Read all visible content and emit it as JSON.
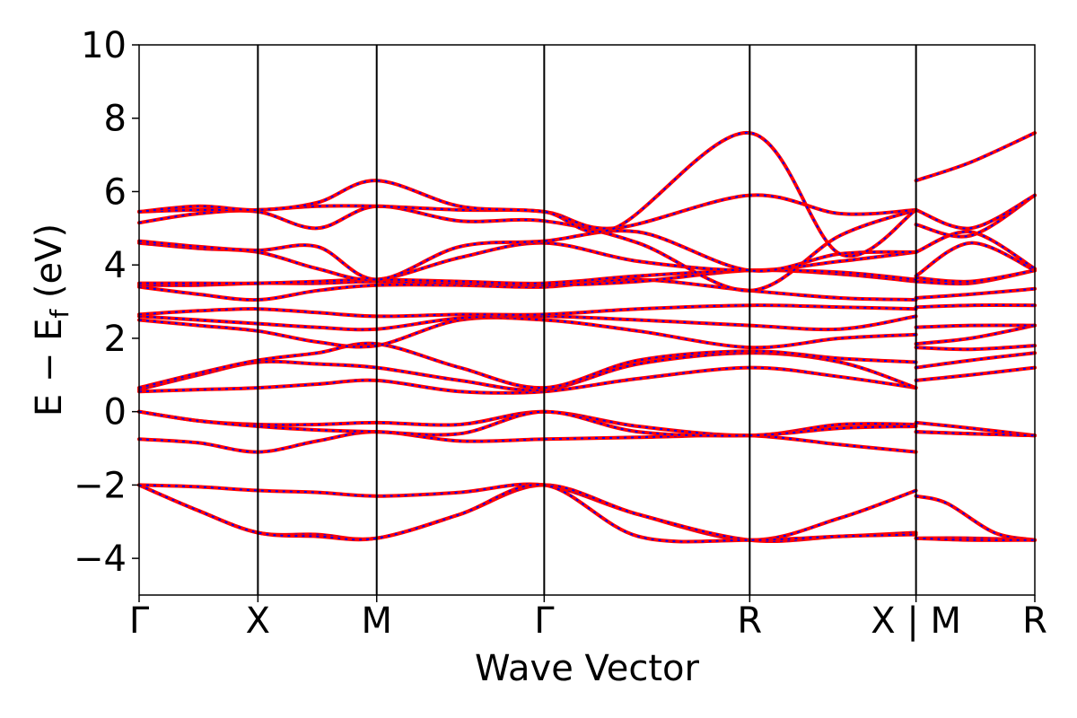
{
  "chart_data": {
    "type": "line",
    "xlabel": "Wave Vector",
    "ylabel": "E − E_f (eV)",
    "ylabel_parts": {
      "main": "E − E",
      "sub": "f",
      "unit": " (eV)"
    },
    "ylim": [
      -5,
      10
    ],
    "yticks": [
      -4,
      -2,
      0,
      2,
      4,
      6,
      8,
      10
    ],
    "ytick_labels": [
      "−4",
      "−2",
      "0",
      "2",
      "4",
      "6",
      "8",
      "10"
    ],
    "xlim": [
      0,
      7.5
    ],
    "x_segments": [
      {
        "from": "Γ",
        "to": "X",
        "start": 0.0,
        "end": 1.0
      },
      {
        "from": "X",
        "to": "M",
        "start": 1.0,
        "end": 2.0
      },
      {
        "from": "M",
        "to": "Γ",
        "start": 2.0,
        "end": 3.41
      },
      {
        "from": "Γ",
        "to": "R",
        "start": 3.41,
        "end": 5.14
      },
      {
        "from": "R",
        "to": "X",
        "start": 5.14,
        "end": 6.54
      },
      {
        "from": "M",
        "to": "R",
        "start": 6.54,
        "end": 7.54
      }
    ],
    "high_symmetry_points": [
      {
        "label": "Γ",
        "x": 0.0
      },
      {
        "label": "X",
        "x": 1.0
      },
      {
        "label": "M",
        "x": 2.0
      },
      {
        "label": "Γ",
        "x": 3.41
      },
      {
        "label": "R",
        "x": 5.14
      },
      {
        "label": "X | M",
        "x": 6.54
      },
      {
        "label": "R",
        "x": 7.54
      }
    ],
    "series_styles": [
      {
        "color": "#ff0000",
        "style": "solid",
        "width": 4
      },
      {
        "color": "#0000ff",
        "style": "dotted",
        "width": 2
      }
    ],
    "bands": [
      [
        [
          0,
          -2.0
        ],
        [
          0.5,
          -2.05
        ],
        [
          1,
          -2.15
        ],
        [
          1.5,
          -2.2
        ],
        [
          2,
          -2.3
        ],
        [
          2.7,
          -2.2
        ],
        [
          3.41,
          -2.0
        ],
        [
          4.2,
          -2.8
        ],
        [
          5.14,
          -3.5
        ],
        [
          5.9,
          -2.9
        ],
        [
          6.54,
          -2.15
        ],
        [
          6.54,
          -2.3
        ],
        [
          6.8,
          -2.5
        ],
        [
          7.2,
          -3.3
        ],
        [
          7.54,
          -3.5
        ]
      ],
      [
        [
          0,
          -2.0
        ],
        [
          0.5,
          -2.7
        ],
        [
          1,
          -3.3
        ],
        [
          1.5,
          -3.35
        ],
        [
          2,
          -3.45
        ],
        [
          2.7,
          -2.8
        ],
        [
          3.41,
          -2.0
        ],
        [
          4.2,
          -2.8
        ],
        [
          5.14,
          -3.5
        ],
        [
          5.9,
          -3.4
        ],
        [
          6.54,
          -3.3
        ],
        [
          6.54,
          -3.45
        ],
        [
          7.0,
          -3.45
        ],
        [
          7.54,
          -3.5
        ]
      ],
      [
        [
          0,
          -2.0
        ],
        [
          0.5,
          -2.7
        ],
        [
          1,
          -3.3
        ],
        [
          1.5,
          -3.4
        ],
        [
          2,
          -3.45
        ],
        [
          2.7,
          -2.8
        ],
        [
          3.41,
          -2.0
        ],
        [
          4.2,
          -3.4
        ],
        [
          5.14,
          -3.5
        ],
        [
          5.9,
          -3.4
        ],
        [
          6.54,
          -3.35
        ],
        [
          6.54,
          -3.45
        ],
        [
          7.0,
          -3.5
        ],
        [
          7.54,
          -3.5
        ]
      ],
      [
        [
          0,
          -0.75
        ],
        [
          0.5,
          -0.85
        ],
        [
          1,
          -1.1
        ],
        [
          1.5,
          -0.8
        ],
        [
          2,
          -0.55
        ],
        [
          2.7,
          -0.8
        ],
        [
          3.41,
          -0.75
        ],
        [
          4.2,
          -0.7
        ],
        [
          5.14,
          -0.65
        ],
        [
          5.9,
          -0.9
        ],
        [
          6.54,
          -1.1
        ],
        [
          6.54,
          -0.55
        ],
        [
          7.0,
          -0.6
        ],
        [
          7.54,
          -0.65
        ]
      ],
      [
        [
          0,
          0.0
        ],
        [
          0.5,
          -0.25
        ],
        [
          1,
          -0.35
        ],
        [
          1.5,
          -0.35
        ],
        [
          2,
          -0.3
        ],
        [
          2.7,
          -0.35
        ],
        [
          3.41,
          0.0
        ],
        [
          4.2,
          -0.4
        ],
        [
          5.14,
          -0.65
        ],
        [
          5.9,
          -0.35
        ],
        [
          6.54,
          -0.35
        ],
        [
          6.54,
          -0.3
        ],
        [
          7.0,
          -0.45
        ],
        [
          7.54,
          -0.65
        ]
      ],
      [
        [
          0,
          0.0
        ],
        [
          0.5,
          -0.25
        ],
        [
          1,
          -0.4
        ],
        [
          1.5,
          -0.5
        ],
        [
          2,
          -0.55
        ],
        [
          2.7,
          -0.6
        ],
        [
          3.41,
          0.0
        ],
        [
          4.2,
          -0.55
        ],
        [
          5.14,
          -0.65
        ],
        [
          5.9,
          -0.45
        ],
        [
          6.54,
          -0.4
        ],
        [
          6.54,
          -0.55
        ],
        [
          7.0,
          -0.6
        ],
        [
          7.54,
          -0.65
        ]
      ],
      [
        [
          0,
          0.55
        ],
        [
          0.5,
          0.6
        ],
        [
          1,
          0.65
        ],
        [
          1.5,
          0.75
        ],
        [
          2,
          0.85
        ],
        [
          2.7,
          0.55
        ],
        [
          3.41,
          0.55
        ],
        [
          4.2,
          0.9
        ],
        [
          5.14,
          1.2
        ],
        [
          5.9,
          0.95
        ],
        [
          6.54,
          0.65
        ],
        [
          6.54,
          0.85
        ],
        [
          7.0,
          1.0
        ],
        [
          7.54,
          1.2
        ]
      ],
      [
        [
          0,
          0.6
        ],
        [
          0.5,
          1.0
        ],
        [
          1,
          1.35
        ],
        [
          1.5,
          1.3
        ],
        [
          2,
          1.2
        ],
        [
          2.7,
          0.85
        ],
        [
          3.41,
          0.6
        ],
        [
          4.2,
          1.3
        ],
        [
          5.14,
          1.6
        ],
        [
          5.9,
          1.35
        ],
        [
          6.54,
          0.65
        ],
        [
          6.54,
          1.2
        ],
        [
          7.0,
          1.4
        ],
        [
          7.54,
          1.6
        ]
      ],
      [
        [
          0,
          0.65
        ],
        [
          0.5,
          1.05
        ],
        [
          1,
          1.4
        ],
        [
          1.5,
          1.6
        ],
        [
          2,
          1.85
        ],
        [
          2.7,
          1.2
        ],
        [
          3.41,
          0.65
        ],
        [
          4.2,
          1.4
        ],
        [
          5.14,
          1.65
        ],
        [
          5.9,
          1.45
        ],
        [
          6.54,
          1.35
        ],
        [
          6.54,
          1.75
        ],
        [
          7.0,
          1.7
        ],
        [
          7.54,
          1.8
        ]
      ],
      [
        [
          0,
          2.5
        ],
        [
          0.5,
          2.35
        ],
        [
          1,
          2.2
        ],
        [
          1.5,
          1.9
        ],
        [
          2,
          1.8
        ],
        [
          2.7,
          2.5
        ],
        [
          3.41,
          2.5
        ],
        [
          4.2,
          2.2
        ],
        [
          5.14,
          1.75
        ],
        [
          5.9,
          2.0
        ],
        [
          6.54,
          2.1
        ],
        [
          6.54,
          1.85
        ],
        [
          7.0,
          2.0
        ],
        [
          7.54,
          2.35
        ]
      ],
      [
        [
          0,
          2.6
        ],
        [
          0.5,
          2.5
        ],
        [
          1,
          2.4
        ],
        [
          1.5,
          2.3
        ],
        [
          2,
          2.25
        ],
        [
          2.7,
          2.55
        ],
        [
          3.41,
          2.6
        ],
        [
          4.2,
          2.5
        ],
        [
          5.14,
          2.35
        ],
        [
          5.9,
          2.25
        ],
        [
          6.54,
          2.6
        ],
        [
          6.54,
          2.3
        ],
        [
          7.0,
          2.35
        ],
        [
          7.54,
          2.35
        ]
      ],
      [
        [
          0,
          2.65
        ],
        [
          0.5,
          2.75
        ],
        [
          1,
          2.8
        ],
        [
          1.5,
          2.7
        ],
        [
          2,
          2.6
        ],
        [
          2.7,
          2.65
        ],
        [
          3.41,
          2.65
        ],
        [
          4.2,
          2.8
        ],
        [
          5.14,
          2.9
        ],
        [
          5.9,
          2.85
        ],
        [
          6.54,
          2.8
        ],
        [
          6.54,
          2.85
        ],
        [
          7.0,
          2.9
        ],
        [
          7.54,
          2.9
        ]
      ],
      [
        [
          0,
          3.4
        ],
        [
          0.5,
          3.2
        ],
        [
          1,
          3.05
        ],
        [
          1.5,
          3.3
        ],
        [
          2,
          3.45
        ],
        [
          2.7,
          3.45
        ],
        [
          3.41,
          3.4
        ],
        [
          4.2,
          3.6
        ],
        [
          5.14,
          3.3
        ],
        [
          5.9,
          3.1
        ],
        [
          6.54,
          3.05
        ],
        [
          6.54,
          3.1
        ],
        [
          7.0,
          3.2
        ],
        [
          7.54,
          3.35
        ]
      ],
      [
        [
          0,
          3.45
        ],
        [
          0.5,
          3.45
        ],
        [
          1,
          3.5
        ],
        [
          1.5,
          3.5
        ],
        [
          2,
          3.55
        ],
        [
          2.7,
          3.5
        ],
        [
          3.41,
          3.45
        ],
        [
          4.2,
          3.55
        ],
        [
          5.14,
          3.85
        ],
        [
          5.9,
          3.75
        ],
        [
          6.54,
          3.55
        ],
        [
          6.54,
          3.55
        ],
        [
          7.0,
          3.5
        ],
        [
          7.54,
          3.85
        ]
      ],
      [
        [
          0,
          3.5
        ],
        [
          0.5,
          3.5
        ],
        [
          1,
          3.5
        ],
        [
          1.5,
          3.55
        ],
        [
          2,
          3.6
        ],
        [
          2.7,
          3.55
        ],
        [
          3.41,
          3.5
        ],
        [
          4.2,
          3.7
        ],
        [
          5.14,
          3.85
        ],
        [
          5.9,
          3.8
        ],
        [
          6.54,
          3.6
        ],
        [
          6.54,
          3.65
        ],
        [
          7.0,
          3.55
        ],
        [
          7.54,
          3.85
        ]
      ],
      [
        [
          0,
          4.6
        ],
        [
          0.5,
          4.45
        ],
        [
          1,
          4.35
        ],
        [
          1.5,
          3.9
        ],
        [
          2,
          3.6
        ],
        [
          2.7,
          4.2
        ],
        [
          3.41,
          4.6
        ],
        [
          4.2,
          4.1
        ],
        [
          5.14,
          3.85
        ],
        [
          5.9,
          4.1
        ],
        [
          6.54,
          4.35
        ],
        [
          6.54,
          3.7
        ],
        [
          7.0,
          4.6
        ],
        [
          7.54,
          3.85
        ]
      ],
      [
        [
          0,
          4.65
        ],
        [
          0.5,
          4.5
        ],
        [
          1,
          4.4
        ],
        [
          1.5,
          4.5
        ],
        [
          2,
          3.6
        ],
        [
          2.7,
          4.5
        ],
        [
          3.41,
          4.65
        ],
        [
          4.2,
          4.9
        ],
        [
          5.14,
          3.85
        ],
        [
          5.9,
          4.3
        ],
        [
          6.54,
          4.35
        ],
        [
          6.54,
          4.35
        ],
        [
          7.0,
          4.9
        ],
        [
          7.54,
          3.9
        ]
      ],
      [
        [
          0,
          5.15
        ],
        [
          0.5,
          5.4
        ],
        [
          1,
          5.45
        ],
        [
          1.5,
          5.0
        ],
        [
          2,
          5.6
        ],
        [
          2.7,
          5.2
        ],
        [
          3.41,
          5.2
        ],
        [
          4.2,
          4.6
        ],
        [
          5.14,
          3.3
        ],
        [
          5.9,
          4.8
        ],
        [
          6.54,
          5.5
        ],
        [
          6.54,
          5.1
        ],
        [
          7.0,
          4.8
        ],
        [
          7.54,
          5.9
        ]
      ],
      [
        [
          0,
          5.45
        ],
        [
          0.5,
          5.5
        ],
        [
          1,
          5.5
        ],
        [
          1.5,
          5.6
        ],
        [
          2,
          5.6
        ],
        [
          2.7,
          5.5
        ],
        [
          3.41,
          5.45
        ],
        [
          4.0,
          5.0
        ],
        [
          5.14,
          5.9
        ],
        [
          5.9,
          5.4
        ],
        [
          6.54,
          5.5
        ],
        [
          6.54,
          5.5
        ],
        [
          7.0,
          5.0
        ],
        [
          7.54,
          5.9
        ]
      ],
      [
        [
          0,
          5.45
        ],
        [
          0.5,
          5.6
        ],
        [
          1,
          5.5
        ],
        [
          1.5,
          5.7
        ],
        [
          2,
          6.3
        ],
        [
          2.7,
          5.6
        ],
        [
          3.41,
          5.45
        ],
        [
          4.0,
          5.0
        ],
        [
          5.14,
          7.6
        ],
        [
          5.9,
          4.3
        ],
        [
          6.54,
          5.5
        ],
        [
          6.54,
          6.3
        ],
        [
          7.0,
          6.8
        ],
        [
          7.54,
          7.6
        ]
      ]
    ]
  }
}
